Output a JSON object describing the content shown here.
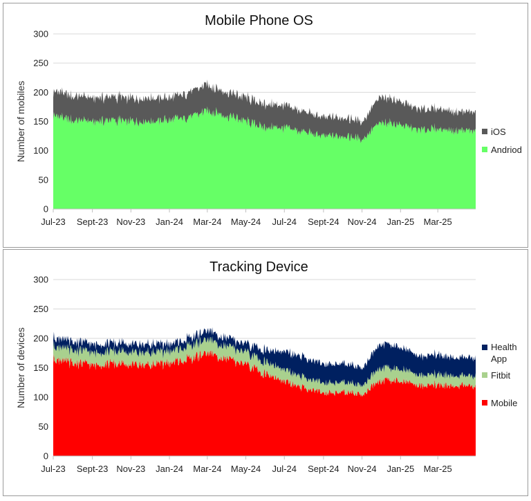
{
  "chart_data": [
    {
      "type": "area",
      "stacked": true,
      "title": "Mobile Phone OS",
      "xlabel": "",
      "ylabel": "Number of mobiles",
      "ylim": [
        0,
        300
      ],
      "yticks": [
        0,
        50,
        100,
        150,
        200,
        250,
        300
      ],
      "x_range": [
        "2023-07-01",
        "2025-04-30"
      ],
      "x_ticks": [
        {
          "label": "Jul-23",
          "date": "2023-07-01"
        },
        {
          "label": "Sept-23",
          "date": "2023-09-01"
        },
        {
          "label": "Nov-23",
          "date": "2023-11-01"
        },
        {
          "label": "Jan-24",
          "date": "2024-01-01"
        },
        {
          "label": "Mar-24",
          "date": "2024-03-01"
        },
        {
          "label": "May-24",
          "date": "2024-05-01"
        },
        {
          "label": "Jul-24",
          "date": "2024-07-01"
        },
        {
          "label": "Sept-24",
          "date": "2024-09-01"
        },
        {
          "label": "Nov-24",
          "date": "2024-11-01"
        },
        {
          "label": "Jan-25",
          "date": "2025-01-01"
        },
        {
          "label": "Mar-25",
          "date": "2025-03-01"
        }
      ],
      "x": [
        "2023-07-01",
        "2023-08-01",
        "2023-09-01",
        "2023-10-01",
        "2023-11-01",
        "2023-12-01",
        "2024-01-01",
        "2024-02-01",
        "2024-03-01",
        "2024-04-01",
        "2024-05-01",
        "2024-06-01",
        "2024-07-01",
        "2024-08-01",
        "2024-09-01",
        "2024-10-01",
        "2024-11-01",
        "2024-12-01",
        "2025-01-01",
        "2025-02-01",
        "2025-03-01",
        "2025-04-01"
      ],
      "series": [
        {
          "name": "Andriod",
          "color": "#66ff66",
          "values": [
            160,
            152,
            150,
            152,
            150,
            150,
            152,
            158,
            168,
            160,
            150,
            140,
            138,
            132,
            125,
            125,
            120,
            148,
            145,
            135,
            138,
            134
          ]
        },
        {
          "name": "iOS",
          "color": "#595959",
          "values": [
            42,
            42,
            40,
            40,
            40,
            40,
            38,
            42,
            45,
            40,
            40,
            40,
            38,
            35,
            32,
            32,
            30,
            45,
            40,
            35,
            35,
            32
          ]
        }
      ],
      "legend": "right"
    },
    {
      "type": "area",
      "stacked": true,
      "title": "Tracking Device",
      "xlabel": "",
      "ylabel": "Number of devices",
      "ylim": [
        0,
        300
      ],
      "yticks": [
        0,
        50,
        100,
        150,
        200,
        250,
        300
      ],
      "x_range": [
        "2023-07-01",
        "2025-04-30"
      ],
      "x_ticks": [
        {
          "label": "Jul-23",
          "date": "2023-07-01"
        },
        {
          "label": "Sept-23",
          "date": "2023-09-01"
        },
        {
          "label": "Nov-23",
          "date": "2023-11-01"
        },
        {
          "label": "Jan-24",
          "date": "2024-01-01"
        },
        {
          "label": "Mar-24",
          "date": "2024-03-01"
        },
        {
          "label": "May-24",
          "date": "2024-05-01"
        },
        {
          "label": "Jul-24",
          "date": "2024-07-01"
        },
        {
          "label": "Sept-24",
          "date": "2024-09-01"
        },
        {
          "label": "Nov-24",
          "date": "2024-11-01"
        },
        {
          "label": "Jan-25",
          "date": "2025-01-01"
        },
        {
          "label": "Mar-25",
          "date": "2025-03-01"
        }
      ],
      "x": [
        "2023-07-01",
        "2023-08-01",
        "2023-09-01",
        "2023-10-01",
        "2023-11-01",
        "2023-12-01",
        "2024-01-01",
        "2024-02-01",
        "2024-03-01",
        "2024-04-01",
        "2024-05-01",
        "2024-06-01",
        "2024-07-01",
        "2024-08-01",
        "2024-09-01",
        "2024-10-01",
        "2024-11-01",
        "2024-12-01",
        "2025-01-01",
        "2025-02-01",
        "2025-03-01",
        "2025-04-01"
      ],
      "series": [
        {
          "name": "Mobile",
          "color": "#ff0000",
          "values": [
            165,
            158,
            155,
            157,
            155,
            155,
            158,
            165,
            175,
            165,
            155,
            140,
            125,
            115,
            108,
            108,
            105,
            130,
            128,
            120,
            122,
            118
          ]
        },
        {
          "name": "Fitbit",
          "color": "#a9d18e",
          "values": [
            22,
            22,
            21,
            21,
            21,
            21,
            20,
            22,
            23,
            21,
            21,
            20,
            20,
            18,
            17,
            17,
            16,
            22,
            20,
            18,
            18,
            17
          ]
        },
        {
          "name": "Health App",
          "color": "#002060",
          "values": [
            15,
            14,
            14,
            14,
            14,
            14,
            12,
            13,
            15,
            14,
            14,
            20,
            31,
            34,
            32,
            32,
            29,
            41,
            37,
            32,
            33,
            31
          ]
        }
      ],
      "legend": "right"
    }
  ]
}
